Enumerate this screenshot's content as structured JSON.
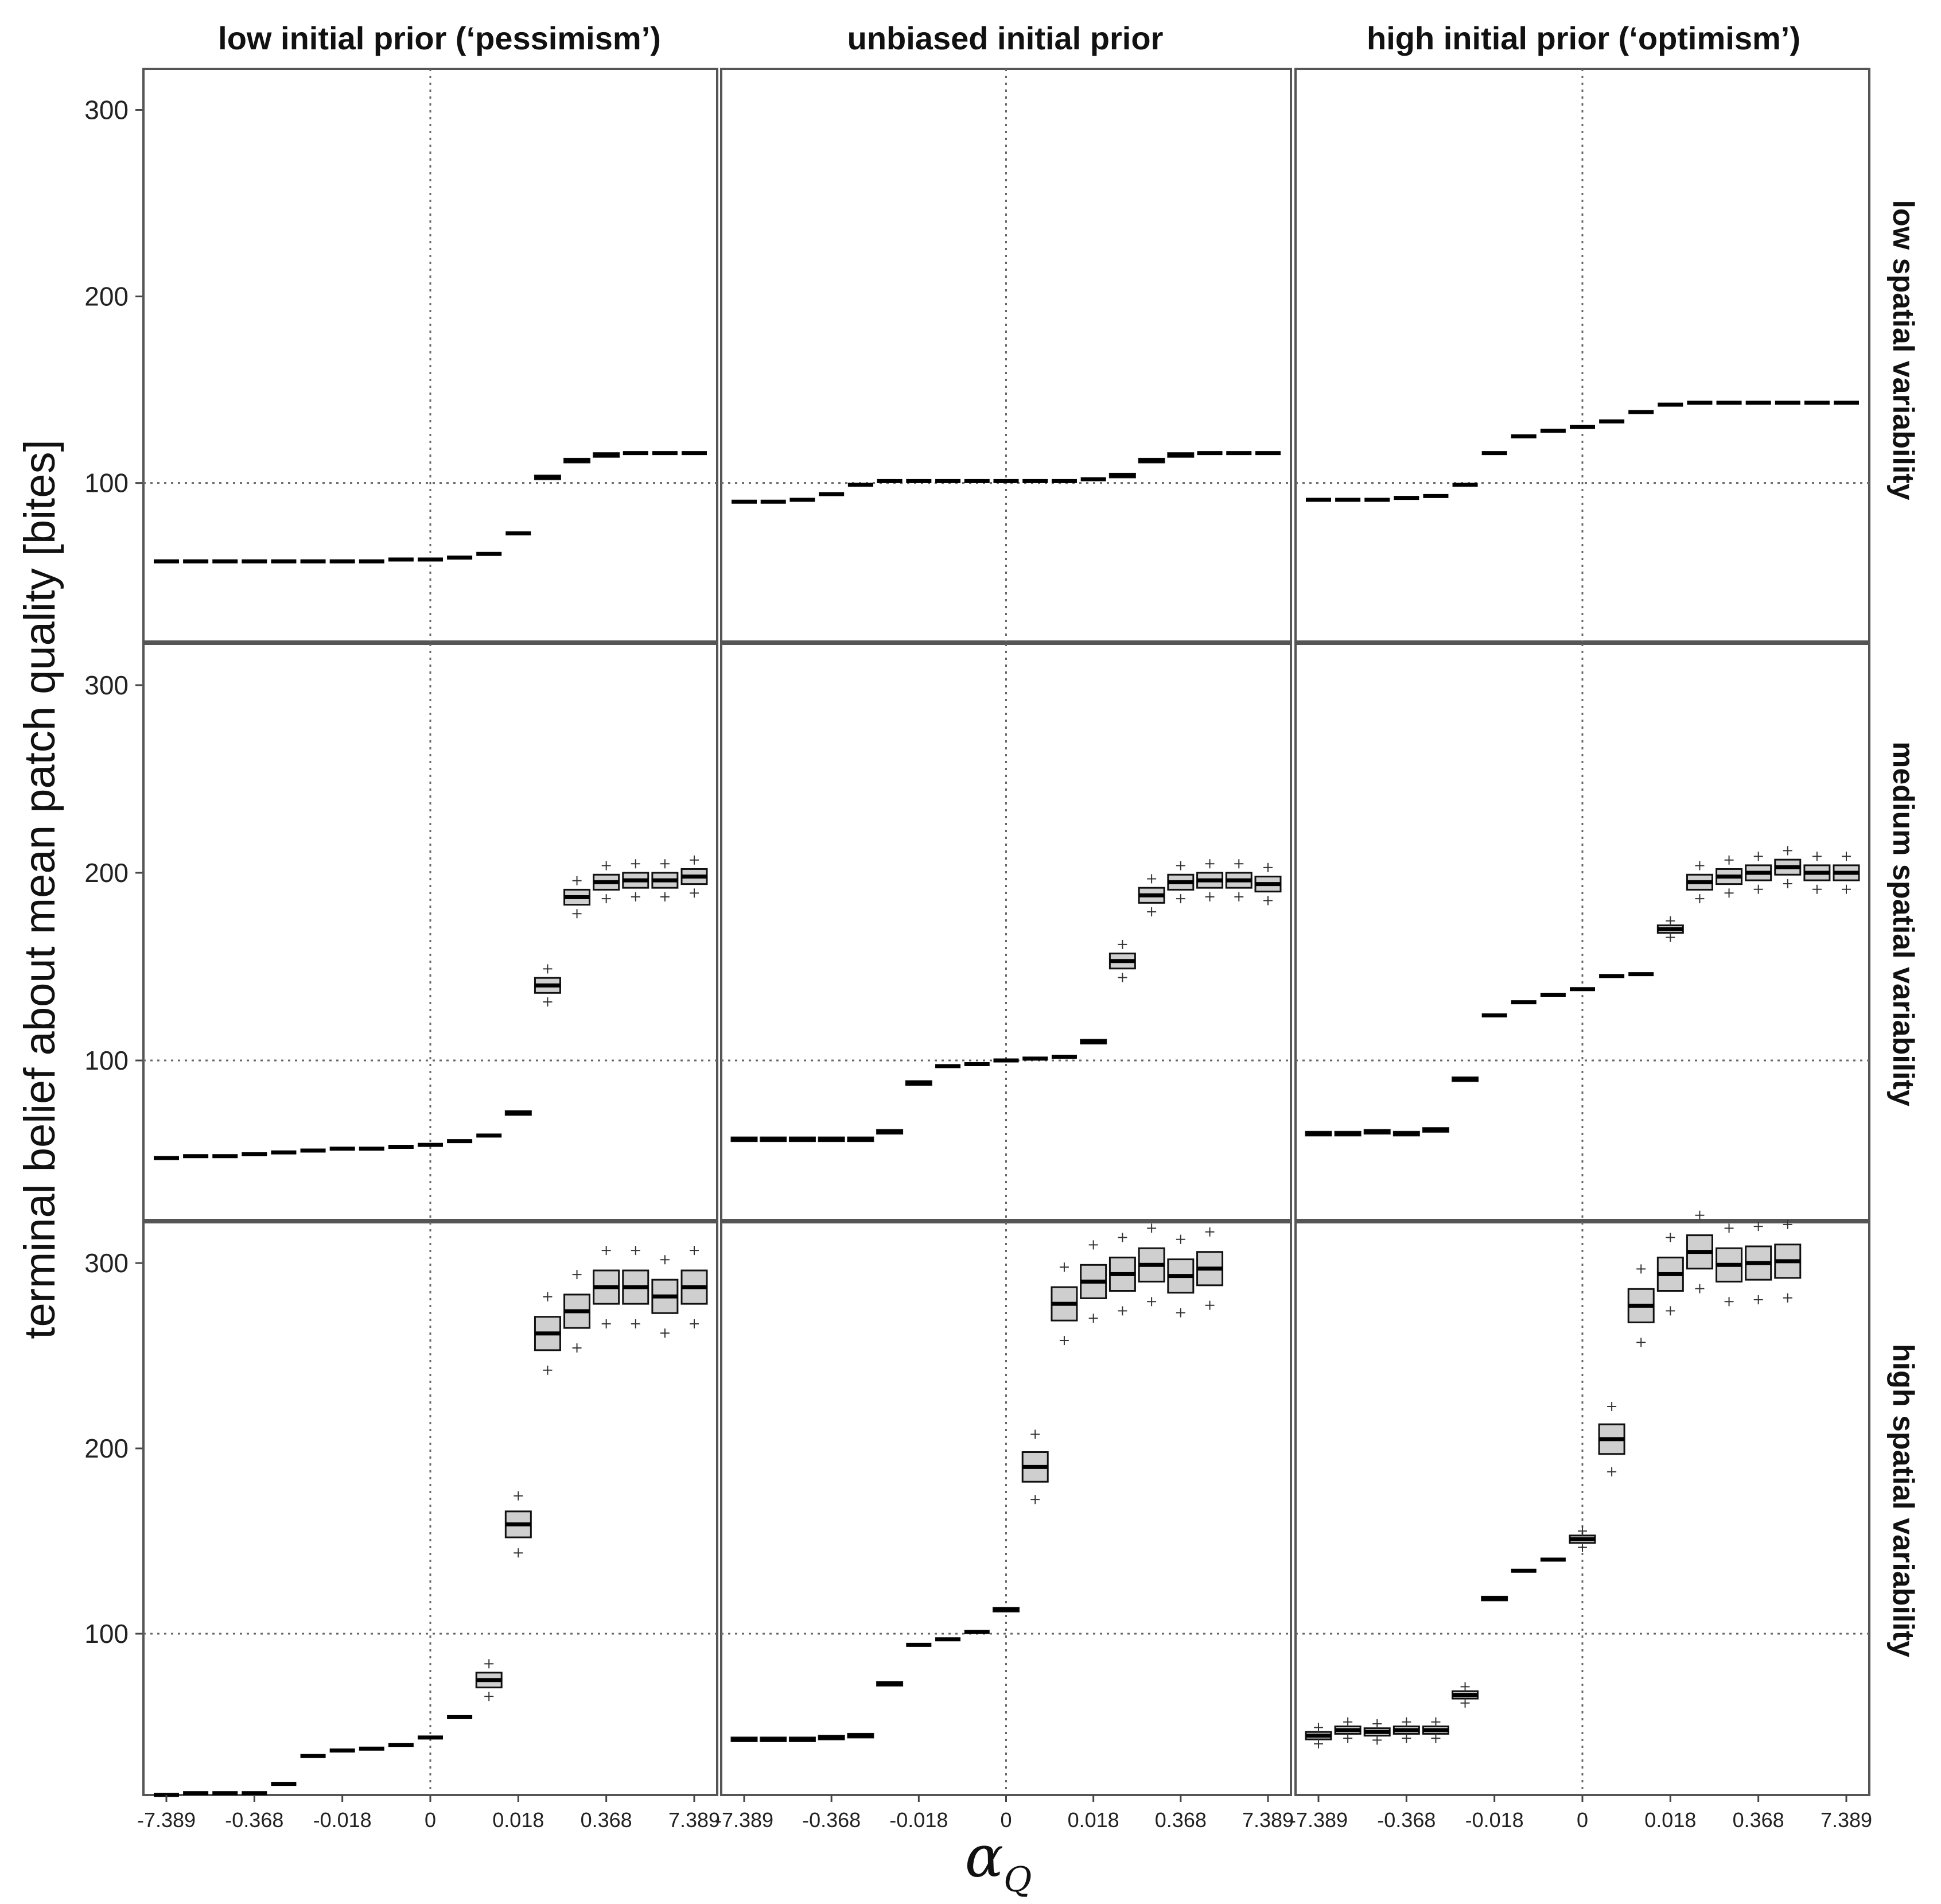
{
  "chart_data": {
    "type": "box",
    "ylabel": "terminal belief about mean patch quality [bites]",
    "xlabel": "α",
    "xlabel_subscript": "Q",
    "col_titles": [
      "low initial prior (‘pessimism’)",
      "unbiased initial prior",
      "high initial prior (‘optimism’)"
    ],
    "row_titles": [
      "low spatial variability",
      "medium spatial variability",
      "high spatial variability"
    ],
    "x_tick_labels": [
      "-7.389",
      "-0.368",
      "-0.018",
      "0",
      "0.018",
      "0.368",
      "7.389"
    ],
    "x_tick_indices": [
      0,
      3,
      6,
      9,
      12,
      15,
      18
    ],
    "n_categories": 19,
    "reference_lines": {
      "x_index": 9,
      "y": 100
    },
    "y_ticks": [
      100,
      200,
      300
    ],
    "row_ylim": [
      [
        15,
        322
      ],
      [
        15,
        322
      ],
      [
        13,
        322
      ]
    ],
    "rows": [
      [
        {
          "median": [
            58,
            58,
            58,
            58,
            58,
            58,
            58,
            58,
            59,
            59,
            60,
            62,
            73,
            103,
            112,
            115,
            116,
            116,
            116
          ],
          "spread": [
            0,
            0,
            0,
            0,
            0,
            0,
            0,
            0,
            0,
            0,
            0,
            0,
            0,
            1,
            1,
            1,
            0,
            0,
            0
          ]
        },
        {
          "median": [
            90,
            90,
            91,
            94,
            99,
            101,
            101,
            101,
            101,
            101,
            101,
            101,
            102,
            104,
            112,
            115,
            116,
            116,
            116
          ],
          "spread": [
            0,
            0,
            0,
            0,
            0,
            0,
            0,
            0,
            0,
            0,
            0,
            0,
            0,
            1,
            1,
            1,
            0,
            0,
            0
          ]
        },
        {
          "median": [
            91,
            91,
            91,
            92,
            93,
            99,
            116,
            125,
            128,
            130,
            133,
            138,
            142,
            143,
            143,
            143,
            143,
            143,
            143
          ],
          "spread": [
            0,
            0,
            0,
            0,
            0,
            0,
            0,
            0,
            0,
            0,
            0,
            0,
            0,
            0,
            0,
            0,
            0,
            0,
            0
          ]
        }
      ],
      [
        {
          "median": [
            48,
            49,
            49,
            50,
            51,
            52,
            53,
            53,
            54,
            55,
            57,
            60,
            72,
            140,
            187,
            195,
            196,
            196,
            198
          ],
          "spread": [
            0,
            0,
            0,
            0,
            0,
            0,
            0,
            0,
            0,
            0,
            0,
            0,
            1,
            4,
            4,
            4,
            4,
            4,
            4
          ]
        },
        {
          "median": [
            58,
            58,
            58,
            58,
            58,
            62,
            88,
            97,
            98,
            100,
            101,
            102,
            110,
            153,
            188,
            195,
            196,
            196,
            194
          ],
          "spread": [
            1,
            1,
            1,
            1,
            1,
            1,
            1,
            0,
            0,
            0,
            0,
            0,
            1,
            4,
            4,
            4,
            4,
            4,
            4
          ]
        },
        {
          "median": [
            61,
            61,
            62,
            61,
            63,
            90,
            124,
            131,
            135,
            138,
            145,
            146,
            170,
            195,
            198,
            200,
            203,
            200,
            200
          ],
          "spread": [
            1,
            1,
            1,
            1,
            1,
            1,
            0,
            0,
            0,
            0,
            0,
            0,
            2,
            4,
            4,
            4,
            4,
            4,
            4
          ]
        }
      ],
      [
        {
          "median": [
            13,
            14,
            14,
            14,
            19,
            34,
            37,
            38,
            40,
            44,
            55,
            75,
            159,
            262,
            274,
            287,
            287,
            282,
            287
          ],
          "spread": [
            0,
            0,
            0,
            0,
            0,
            0,
            0,
            0,
            0,
            0,
            0,
            4,
            7,
            9,
            9,
            9,
            9,
            9,
            9
          ]
        },
        {
          "median": [
            43,
            43,
            43,
            44,
            45,
            73,
            94,
            97,
            101,
            113,
            190,
            278,
            290,
            294,
            299,
            293,
            297,
            0,
            0
          ],
          "spread": [
            1,
            1,
            1,
            1,
            1,
            1,
            0,
            0,
            0,
            1,
            8,
            9,
            9,
            9,
            9,
            9,
            9,
            0,
            0
          ]
        },
        {
          "median": [
            45,
            48,
            47,
            48,
            48,
            67,
            119,
            134,
            140,
            151,
            205,
            277,
            294,
            306,
            299,
            300,
            301,
            0,
            0
          ],
          "spread": [
            2,
            2,
            2,
            2,
            2,
            2,
            1,
            0,
            0,
            2,
            8,
            9,
            9,
            9,
            9,
            9,
            9,
            0,
            0
          ]
        }
      ]
    ],
    "row_lengths": [
      [
        19,
        19,
        19
      ],
      [
        19,
        19,
        19
      ],
      [
        19,
        17,
        17
      ]
    ]
  }
}
